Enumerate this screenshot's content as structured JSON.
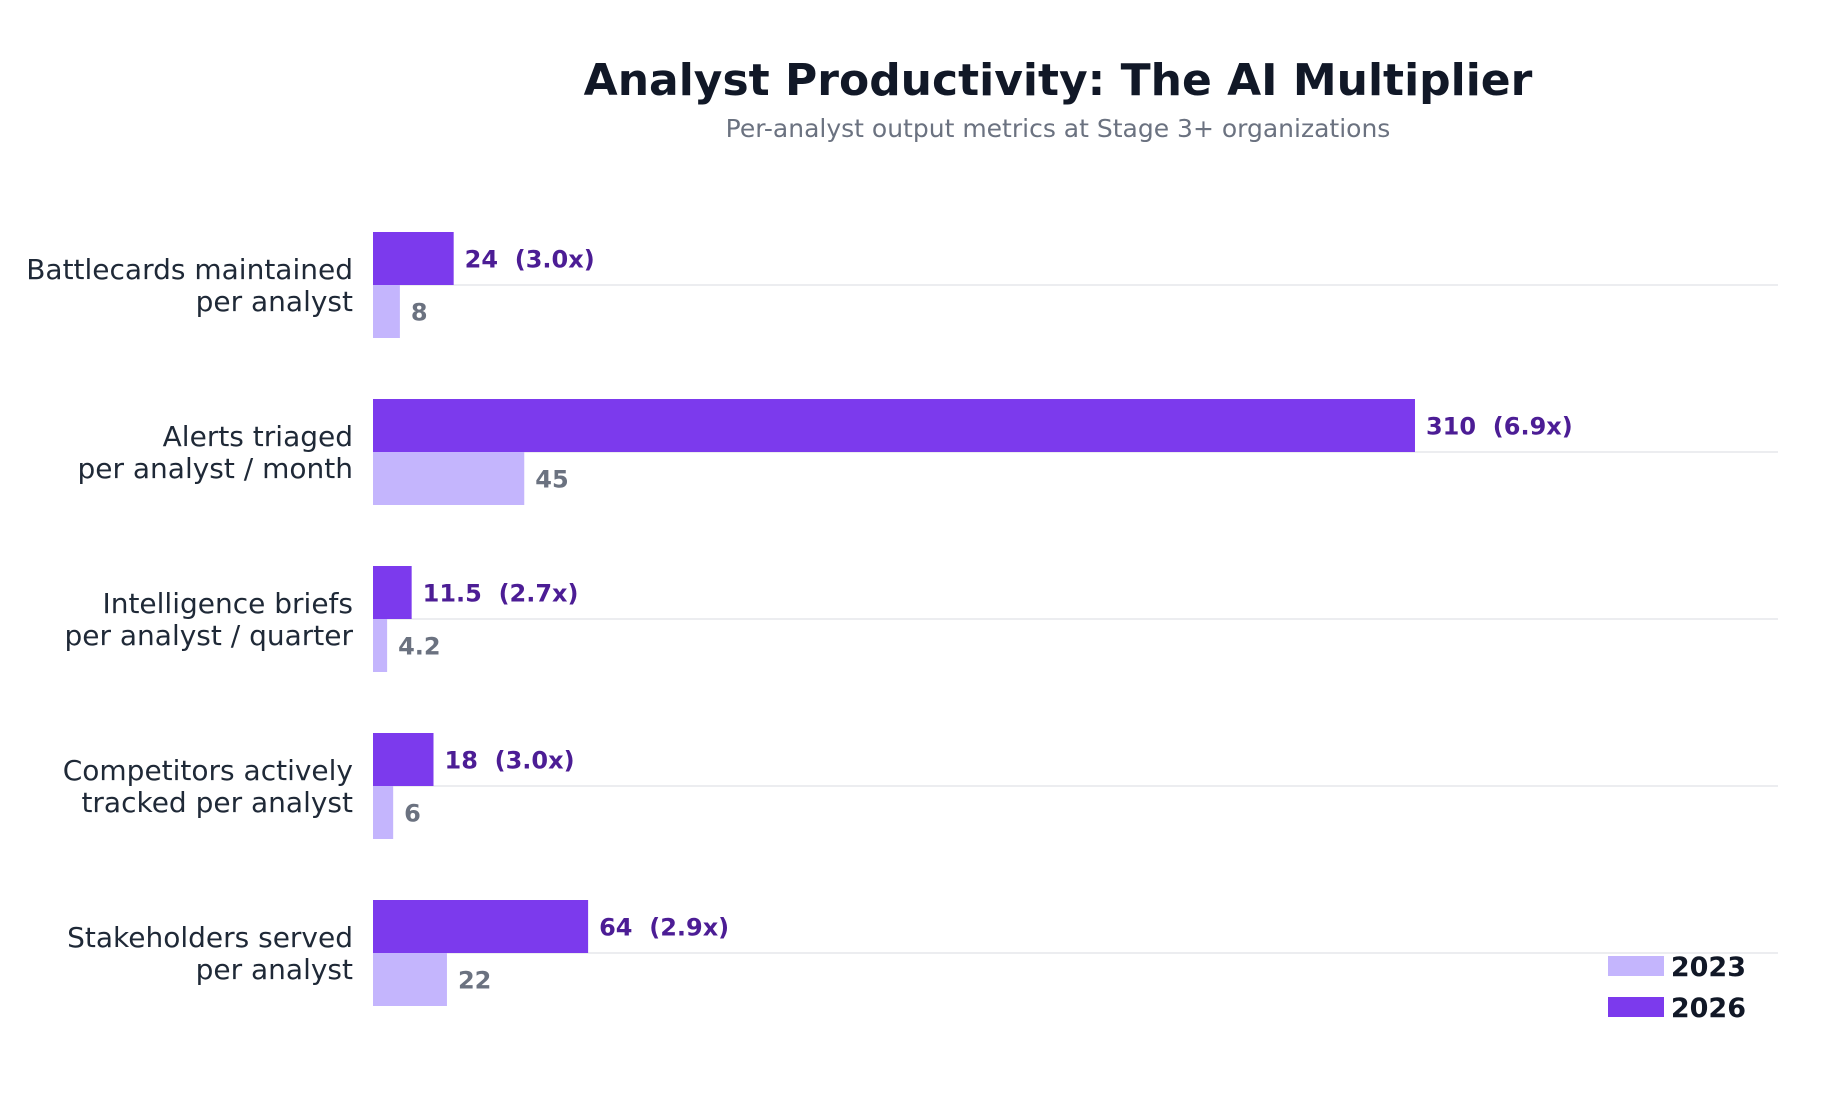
{
  "chart_data": {
    "type": "bar",
    "orientation": "horizontal",
    "title": "Analyst Productivity: The AI Multiplier",
    "subtitle": "Per-analyst output metrics at Stage 3+ organizations",
    "categories": [
      [
        "Battlecards maintained",
        "per analyst"
      ],
      [
        "Alerts triaged",
        "per analyst / month"
      ],
      [
        "Intelligence briefs",
        "per analyst / quarter"
      ],
      [
        "Competitors actively",
        "tracked per analyst"
      ],
      [
        "Stakeholders served",
        "per analyst"
      ]
    ],
    "series": [
      {
        "name": "2023",
        "color": "#c4b5fd",
        "values": [
          8,
          45,
          4.2,
          6,
          22
        ],
        "labels": [
          "8",
          "45",
          "4.2",
          "6",
          "22"
        ]
      },
      {
        "name": "2026",
        "color": "#7c3aed",
        "values": [
          24,
          310,
          11.5,
          18,
          64
        ],
        "labels": [
          "24  (3.0x)",
          "310  (6.9x)",
          "11.5  (2.7x)",
          "18  (3.0x)",
          "64  (2.9x)"
        ]
      }
    ],
    "xlim": [
      0,
      418
    ],
    "grid": "horizontal separators per category",
    "legend": "bottom-right"
  }
}
